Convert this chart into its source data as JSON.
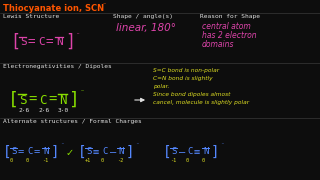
{
  "bg_color": "#0d0d0d",
  "title_color": "#ff5500",
  "text_color": "#e0e0e0",
  "pink_color": "#dd44aa",
  "green_color": "#88dd00",
  "yellow_color": "#dddd22",
  "blue_color": "#5588ff",
  "title": "Thiocyanate ion, SCN",
  "lewis_label": "Lewis Structure",
  "shape_label": "Shape / angle(s)",
  "reason_label": "Reason for Shape",
  "en_label": "Electronegativities / Dipoles",
  "alt_label": "Alternate structures / Formal Charges",
  "shape_text": "linear, 180°",
  "reason_lines": [
    "central atom",
    "has 2 electron",
    "domains"
  ],
  "en_text": [
    "S=C bond is non-polar",
    "C=N bond is slightly",
    "polar.",
    "Since bond dipoles almost",
    "cancel, molecule is slightly polar"
  ],
  "en_values": [
    "2.6",
    "2.6",
    "3.0"
  ],
  "struct1_fc": [
    "0",
    "0",
    "-1"
  ],
  "struct2_fc": [
    "+1",
    "0",
    "-2"
  ],
  "struct3_fc": [
    "-1",
    "0",
    "0"
  ],
  "divider_color": "#444444",
  "grid_lines": [
    14,
    63,
    118
  ]
}
